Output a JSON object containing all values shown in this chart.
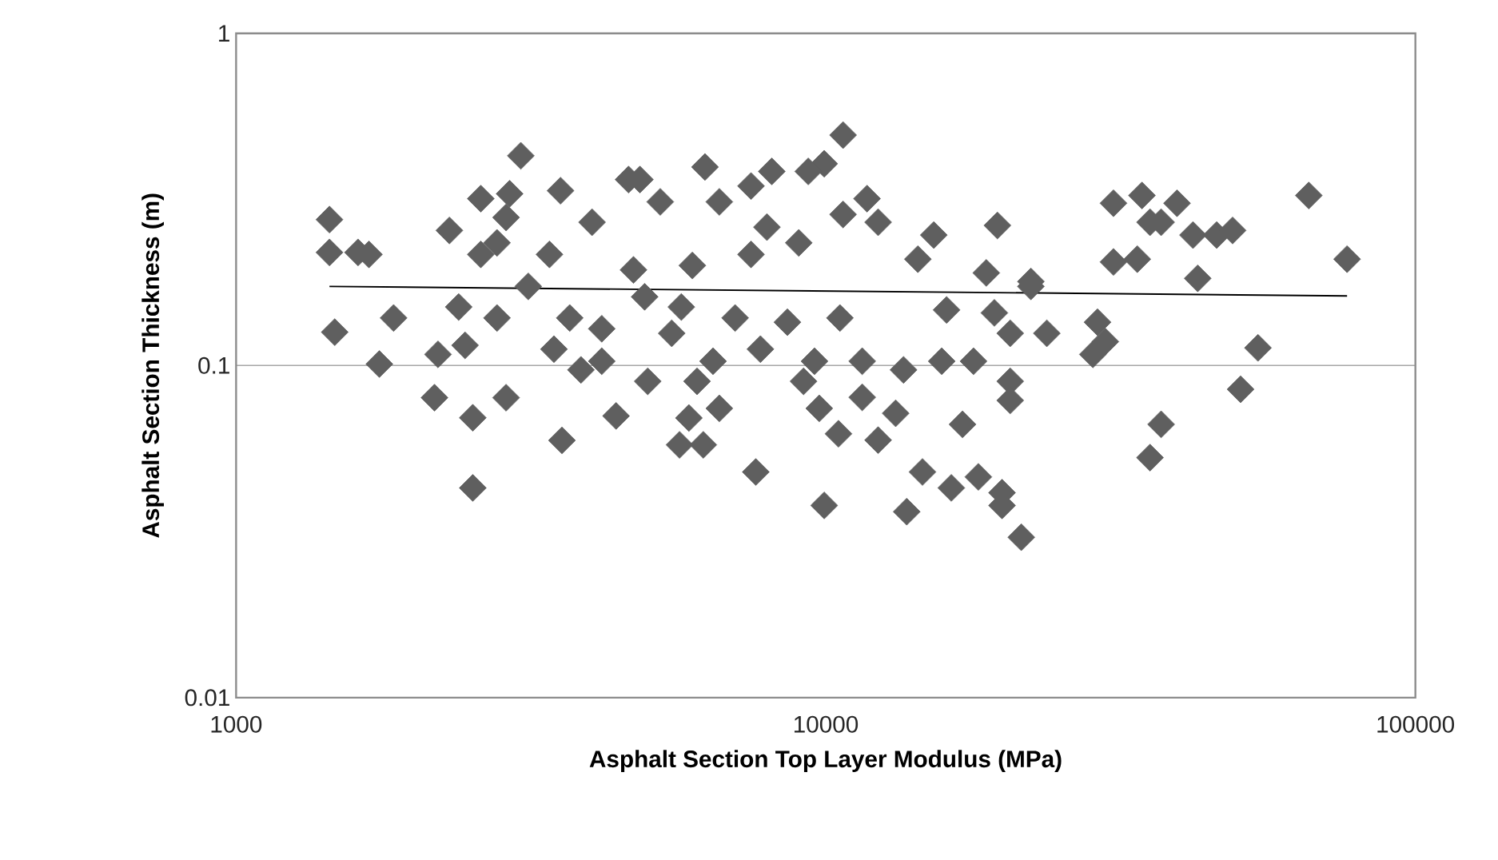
{
  "chart_data": {
    "type": "scatter",
    "xlabel": "Asphalt Section Top Layer Modulus (MPa)",
    "ylabel": "Asphalt Section  Thickness (m)",
    "log": "xy",
    "grid": "y",
    "xlim": [
      1000,
      100000
    ],
    "ylim": [
      0.01,
      1
    ],
    "xticks": [
      1000,
      10000,
      100000
    ],
    "yticks": [
      0.01,
      0.1,
      1
    ],
    "series": [
      {
        "color": "#5f5f5f",
        "marker": "diamond",
        "x": [
          1440,
          1440,
          1610,
          1680,
          1470,
          1850,
          1750,
          2300,
          2170,
          2520,
          2870,
          2520,
          3040,
          3570,
          4410,
          2600,
          2910,
          2600,
          2385,
          2445,
          2200,
          2770,
          3130,
          3400,
          3550,
          4015,
          3680,
          3460,
          4170,
          4630,
          4170,
          3845,
          4720,
          2870,
          2770,
          10700,
          6240,
          8100,
          9940,
          9340,
          7470,
          6600,
          11750,
          12270,
          10700,
          15250,
          19550,
          18720,
          22280,
          14330,
          16030,
          19320,
          20550,
          17810,
          15730,
          13550,
          20550,
          20550,
          17060,
          13140,
          12270,
          10510,
          14590,
          16330,
          18150,
          19910,
          19910,
          21460,
          13720,
          9940,
          7610,
          5650,
          6200,
          5860,
          6600,
          4990,
          11530,
          9750,
          10570,
          8610,
          7020,
          5690,
          4930,
          5940,
          7470,
          9000,
          7950,
          5240,
          4840,
          5480,
          6440,
          7750,
          9570,
          11530,
          6050,
          9170,
          65950,
          76600,
          30760,
          34380,
          39430,
          35480,
          37050,
          41960,
          46030,
          48980,
          30760,
          33760,
          42740,
          22280,
          23710,
          28900,
          29800,
          28380,
          54080,
          50530,
          37050,
          35480
        ],
        "values": [
          0.275,
          0.219,
          0.219,
          0.216,
          0.126,
          0.139,
          0.101,
          0.255,
          0.08,
          0.0696,
          0.08,
          0.0428,
          0.428,
          0.0595,
          0.0705,
          0.318,
          0.329,
          0.216,
          0.15,
          0.115,
          0.108,
          0.139,
          0.173,
          0.216,
          0.336,
          0.27,
          0.139,
          0.112,
          0.129,
          0.363,
          0.103,
          0.097,
          0.194,
          0.279,
          0.234,
          0.494,
          0.396,
          0.384,
          0.405,
          0.384,
          0.347,
          0.311,
          0.318,
          0.27,
          0.285,
          0.247,
          0.264,
          0.19,
          0.179,
          0.209,
          0.147,
          0.144,
          0.125,
          0.103,
          0.103,
          0.097,
          0.0896,
          0.0785,
          0.0665,
          0.0718,
          0.0596,
          0.0623,
          0.0478,
          0.0428,
          0.0462,
          0.0414,
          0.0379,
          0.0304,
          0.0363,
          0.0379,
          0.0478,
          0.0577,
          0.0577,
          0.0695,
          0.0743,
          0.0896,
          0.0802,
          0.0743,
          0.139,
          0.135,
          0.139,
          0.15,
          0.161,
          0.2,
          0.216,
          0.234,
          0.261,
          0.311,
          0.363,
          0.125,
          0.103,
          0.112,
          0.103,
          0.103,
          0.0896,
          0.0896,
          0.325,
          0.209,
          0.308,
          0.325,
          0.308,
          0.27,
          0.27,
          0.247,
          0.247,
          0.255,
          0.205,
          0.209,
          0.183,
          0.173,
          0.125,
          0.135,
          0.118,
          0.108,
          0.113,
          0.0848,
          0.0665,
          0.0528
        ]
      },
      {
        "type": "line",
        "marker": "none",
        "color": "#000000",
        "x": [
          1440,
          76600
        ],
        "values": [
          0.173,
          0.162
        ]
      }
    ]
  }
}
